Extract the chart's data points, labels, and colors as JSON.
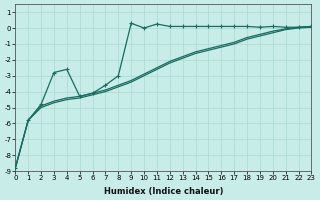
{
  "xlabel": "Humidex (Indice chaleur)",
  "bg_color": "#c8ece8",
  "grid_color": "#a8d8d0",
  "line_color": "#1a6b60",
  "xlim": [
    0,
    23
  ],
  "ylim": [
    -9,
    1.5
  ],
  "xticks": [
    0,
    1,
    2,
    3,
    4,
    5,
    6,
    7,
    8,
    9,
    10,
    11,
    12,
    13,
    14,
    15,
    16,
    17,
    18,
    19,
    20,
    21,
    22,
    23
  ],
  "yticks": [
    -9,
    -8,
    -7,
    -6,
    -5,
    -4,
    -3,
    -2,
    -1,
    0,
    1
  ],
  "line_jagged_x": [
    0,
    1,
    2,
    3,
    4,
    5,
    6,
    7,
    8,
    9,
    10,
    11,
    12,
    13,
    14,
    15,
    16,
    17,
    18,
    19,
    20,
    21,
    22,
    23
  ],
  "line_jagged_y": [
    -8.8,
    -5.8,
    -4.8,
    -2.8,
    -2.6,
    -4.3,
    -4.1,
    -3.6,
    -3.0,
    0.3,
    0.0,
    0.25,
    0.1,
    0.1,
    0.1,
    0.1,
    0.1,
    0.1,
    0.1,
    0.05,
    0.1,
    0.05,
    0.05,
    0.1
  ],
  "line_smooth1_x": [
    0,
    1,
    2,
    3,
    4,
    5,
    6,
    7,
    8,
    9,
    10,
    11,
    12,
    13,
    14,
    15,
    16,
    17,
    18,
    19,
    20,
    21,
    22,
    23
  ],
  "line_smooth1_y": [
    -8.8,
    -5.8,
    -4.9,
    -4.6,
    -4.4,
    -4.3,
    -4.1,
    -3.9,
    -3.6,
    -3.3,
    -2.9,
    -2.5,
    -2.1,
    -1.8,
    -1.5,
    -1.3,
    -1.1,
    -0.9,
    -0.6,
    -0.4,
    -0.2,
    -0.05,
    0.05,
    0.1
  ],
  "line_smooth2_x": [
    0,
    1,
    2,
    3,
    4,
    5,
    6,
    7,
    8,
    9,
    10,
    11,
    12,
    13,
    14,
    15,
    16,
    17,
    18,
    19,
    20,
    21,
    22,
    23
  ],
  "line_smooth2_y": [
    -8.8,
    -5.8,
    -5.0,
    -4.7,
    -4.5,
    -4.4,
    -4.2,
    -4.0,
    -3.7,
    -3.4,
    -3.0,
    -2.6,
    -2.2,
    -1.9,
    -1.6,
    -1.4,
    -1.2,
    -1.0,
    -0.7,
    -0.5,
    -0.3,
    -0.1,
    0.0,
    0.05
  ]
}
